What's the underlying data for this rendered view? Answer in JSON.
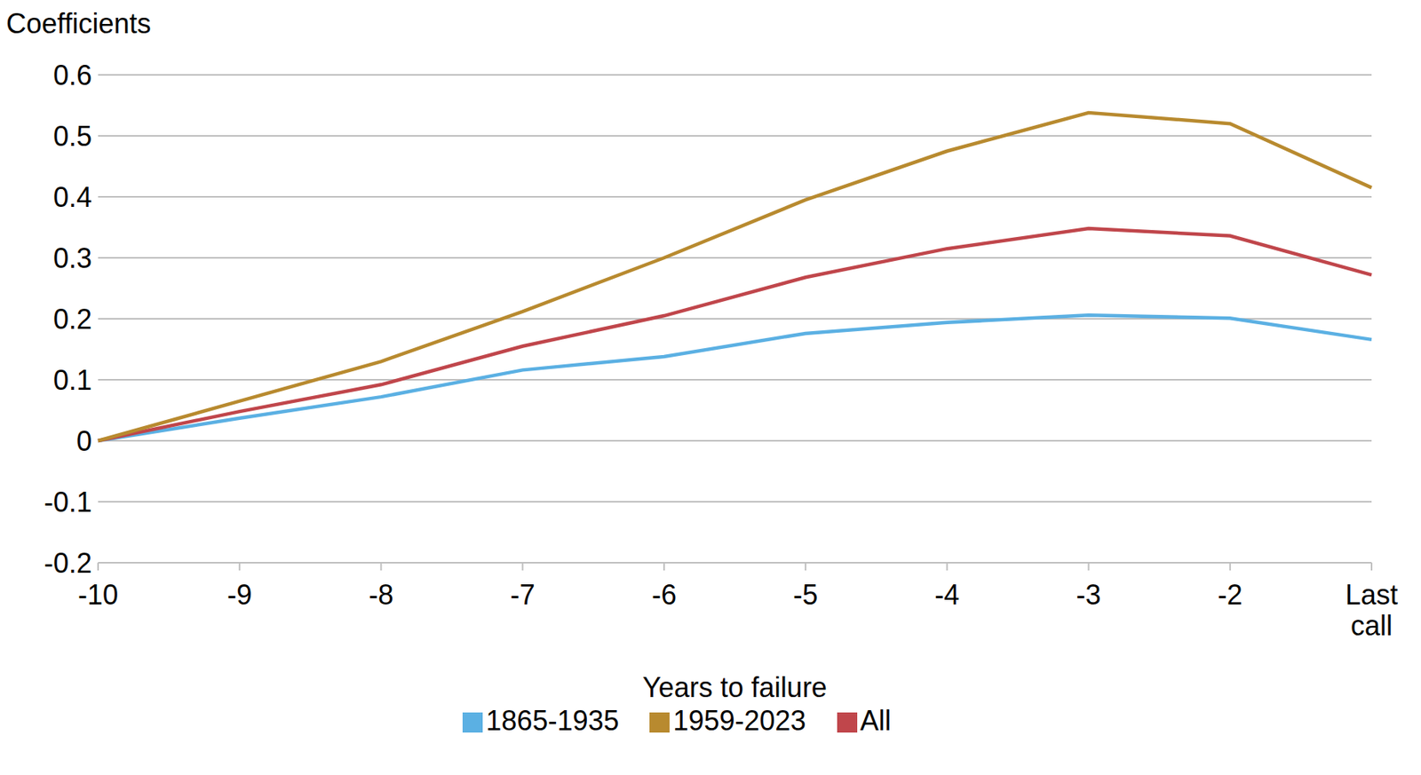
{
  "chart_data": {
    "type": "line",
    "y_label": "Coefficients",
    "x_label": "Years to failure",
    "categories": [
      "-10",
      "-9",
      "-8",
      "-7",
      "-6",
      "-5",
      "-4",
      "-3",
      "-2",
      "Last call"
    ],
    "series": [
      {
        "name": "1865-1935",
        "color": "#5BB0E3",
        "values": [
          0,
          0.037,
          0.072,
          0.116,
          0.138,
          0.176,
          0.194,
          0.206,
          0.201,
          0.166
        ]
      },
      {
        "name": "All",
        "color": "#C0464B",
        "values": [
          0,
          0.048,
          0.092,
          0.155,
          0.205,
          0.268,
          0.315,
          0.348,
          0.336,
          0.272
        ]
      },
      {
        "name": "1959-2023",
        "color": "#B88A2F",
        "values": [
          0,
          0.065,
          0.13,
          0.212,
          0.3,
          0.395,
          0.475,
          0.538,
          0.52,
          0.415
        ]
      }
    ],
    "ylim": [
      -0.2,
      0.6
    ],
    "yticks": [
      -0.2,
      -0.1,
      0,
      0.1,
      0.2,
      0.3,
      0.4,
      0.5,
      0.6
    ],
    "grid": true,
    "legend": "bottom"
  }
}
